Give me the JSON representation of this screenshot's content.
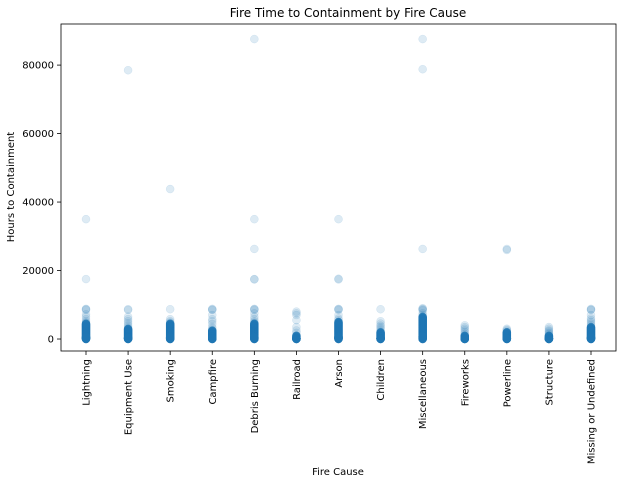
{
  "chart_data": {
    "type": "scatter",
    "title": "Fire Time to Containment by Fire Cause",
    "xlabel": "Fire Cause",
    "ylabel": "Hours to Containment",
    "categories": [
      "Lightning",
      "Equipment Use",
      "Smoking",
      "Campfire",
      "Debris Burning",
      "Railroad",
      "Arson",
      "Children",
      "Miscellaneous",
      "Fireworks",
      "Powerline",
      "Structure",
      "Missing or Undefined"
    ],
    "ylim": [
      -3500,
      92000
    ],
    "yticks": [
      0,
      20000,
      40000,
      60000,
      80000
    ],
    "ytick_labels": [
      "0",
      "20000",
      "40000",
      "60000",
      "80000"
    ],
    "grid": false,
    "point_color": "#1f77b4",
    "point_alpha": 0.15,
    "series": [
      {
        "category": "Lightning",
        "dense_max": 4500,
        "values": [
          35000,
          17500,
          8800,
          8700,
          8500,
          7200,
          6500,
          5800,
          5200,
          4800
        ]
      },
      {
        "category": "Equipment Use",
        "dense_max": 3000,
        "values": [
          78500,
          8700,
          8500,
          6500,
          5800,
          5200,
          4600,
          4000,
          3500
        ]
      },
      {
        "category": "Smoking",
        "dense_max": 4500,
        "values": [
          43800,
          8700,
          5800,
          5200,
          4800
        ]
      },
      {
        "category": "Campfire",
        "dense_max": 2500,
        "values": [
          8800,
          8600,
          8500,
          7000,
          5800,
          5200,
          4400,
          3500,
          3000
        ]
      },
      {
        "category": "Debris Burning",
        "dense_max": 4500,
        "values": [
          87600,
          35000,
          26300,
          17500,
          17400,
          8800,
          8700,
          8500,
          7500,
          6500,
          5800,
          5200,
          4800
        ]
      },
      {
        "category": "Railroad",
        "dense_max": 1000,
        "values": [
          8000,
          7500,
          7000,
          5500,
          3500,
          2500,
          1800
        ]
      },
      {
        "category": "Arson",
        "dense_max": 5000,
        "values": [
          35000,
          17600,
          17400,
          8800,
          8700,
          8500,
          7000,
          6000,
          5500
        ]
      },
      {
        "category": "Children",
        "dense_max": 2000,
        "values": [
          8700,
          5200,
          4500,
          3900,
          3500,
          3000,
          2500
        ]
      },
      {
        "category": "Miscellaneous",
        "dense_max": 6500,
        "values": [
          87600,
          78800,
          26300,
          9000,
          8800,
          8600,
          8400,
          7500,
          7000
        ]
      },
      {
        "category": "Fireworks",
        "dense_max": 1000,
        "values": [
          4000,
          3500,
          3000,
          2500,
          2000,
          1500
        ]
      },
      {
        "category": "Powerline",
        "dense_max": 2000,
        "values": [
          26300,
          26000,
          3000,
          2700,
          2400
        ]
      },
      {
        "category": "Structure",
        "dense_max": 1000,
        "values": [
          3500,
          3000,
          2500,
          2200,
          1800,
          1500
        ]
      },
      {
        "category": "Missing or Undefined",
        "dense_max": 3500,
        "values": [
          8800,
          8600,
          8500,
          7000,
          6000,
          5500,
          5000,
          4500,
          4000
        ]
      }
    ]
  }
}
